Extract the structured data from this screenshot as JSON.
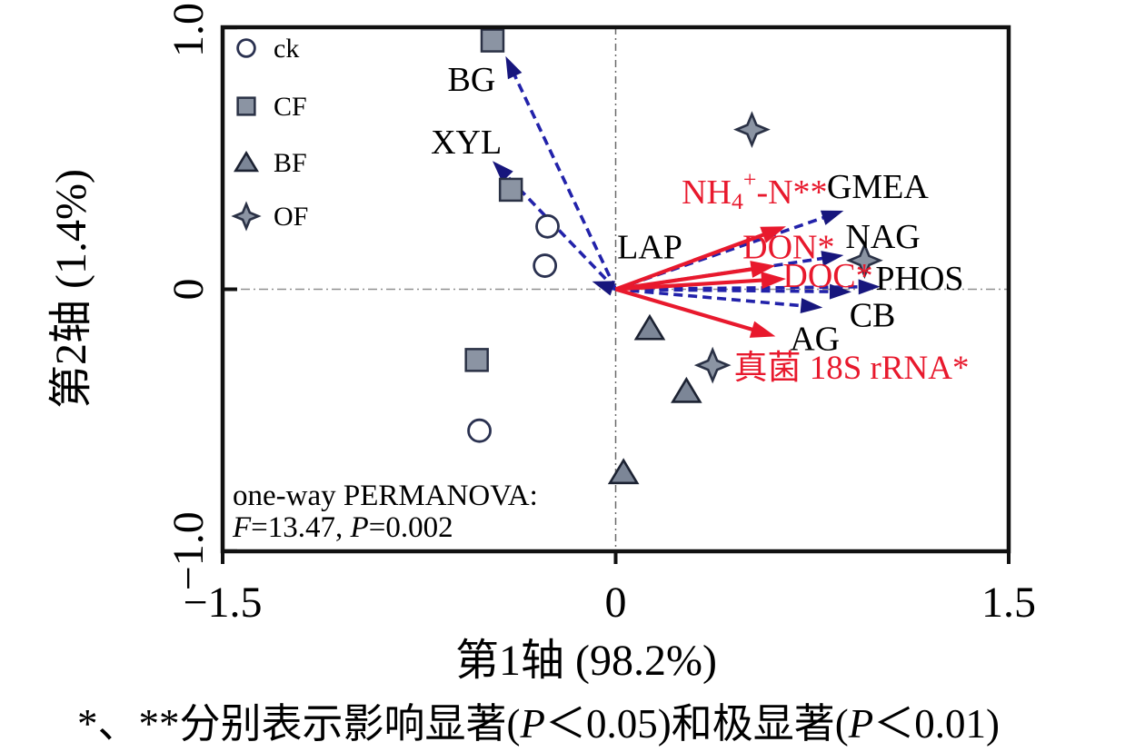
{
  "colors": {
    "blue_line": "#2222aa",
    "blue_head": "#17167d",
    "red": "#e8192d",
    "marker_fill": "#8b94a3",
    "marker_stroke": "#2a3145",
    "triangle_fill": "#7c8697",
    "triangle_stroke": "#1c2232",
    "circle_stroke": "#2a3150",
    "axis_black": "#111111",
    "ref_gray": "#909090",
    "text_black": "#000000"
  },
  "chart_data": {
    "type": "scatter",
    "subtype": "RDA ordination biplot",
    "xlabel": "第1轴 (98.2%)",
    "ylabel": "第2轴 (1.4%)",
    "xlim": [
      -1.5,
      1.5
    ],
    "ylim": [
      -1.0,
      1.0
    ],
    "grid": "dash-dot reference lines at x=0 and y=0",
    "legend_position": "inside top-left",
    "xticks": [
      {
        "v": -1.5,
        "label": "−1.5"
      },
      {
        "v": 0,
        "label": "0"
      },
      {
        "v": 1.5,
        "label": "1.5"
      }
    ],
    "yticks": [
      {
        "v": 1.0,
        "label": "1.0"
      },
      {
        "v": 0,
        "label": "0"
      },
      {
        "v": -1.0,
        "label": "−1.0"
      }
    ],
    "series": [
      {
        "name": "ck",
        "marker": "circle-open",
        "points": [
          {
            "x": -0.26,
            "y": 0.24
          },
          {
            "x": -0.27,
            "y": 0.09
          },
          {
            "x": -0.52,
            "y": -0.54
          }
        ]
      },
      {
        "name": "CF",
        "marker": "square",
        "points": [
          {
            "x": -0.47,
            "y": 0.95
          },
          {
            "x": -0.4,
            "y": 0.38
          },
          {
            "x": -0.53,
            "y": -0.27
          }
        ]
      },
      {
        "name": "BF",
        "marker": "triangle",
        "points": [
          {
            "x": 0.13,
            "y": -0.15
          },
          {
            "x": 0.27,
            "y": -0.39
          },
          {
            "x": 0.03,
            "y": -0.7
          }
        ]
      },
      {
        "name": "OF",
        "marker": "star4",
        "points": [
          {
            "x": 0.52,
            "y": 0.61
          },
          {
            "x": 0.95,
            "y": 0.11
          },
          {
            "x": 0.37,
            "y": -0.29
          }
        ]
      }
    ],
    "enzyme_vectors": [
      {
        "name": "BG",
        "x": -0.42,
        "y": 0.89,
        "label_at": {
          "x": -0.55,
          "y": 0.8
        },
        "parts": [
          {
            "t": "BG"
          }
        ]
      },
      {
        "name": "XYL",
        "x": -0.47,
        "y": 0.49,
        "label_at": {
          "x": -0.57,
          "y": 0.56
        },
        "parts": [
          {
            "t": "XYL"
          }
        ]
      },
      {
        "name": "LAP",
        "x": -0.09,
        "y": 0.03,
        "label_at": {
          "x": 0.13,
          "y": 0.16
        },
        "parts": [
          {
            "t": "LAP"
          }
        ]
      },
      {
        "name": "GMEA",
        "x": 0.87,
        "y": 0.3,
        "label_at": {
          "x": 1.0,
          "y": 0.39
        },
        "parts": [
          {
            "t": "GMEA"
          }
        ]
      },
      {
        "name": "NAG",
        "x": 0.87,
        "y": 0.13,
        "label_at": {
          "x": 1.02,
          "y": 0.2
        },
        "parts": [
          {
            "t": "NAG"
          }
        ]
      },
      {
        "name": "PHOS",
        "x": 1.01,
        "y": 0.01,
        "label_at": {
          "x": 1.16,
          "y": 0.04
        },
        "parts": [
          {
            "t": "PHOS"
          }
        ]
      },
      {
        "name": "CB",
        "x": 0.9,
        "y": -0.01,
        "label_at": {
          "x": 0.98,
          "y": -0.1
        },
        "parts": [
          {
            "t": "CB"
          }
        ]
      },
      {
        "name": "AG",
        "x": 0.79,
        "y": -0.07,
        "label_at": {
          "x": 0.76,
          "y": -0.19
        },
        "parts": [
          {
            "t": "AG"
          }
        ]
      }
    ],
    "env_vectors": [
      {
        "name": "NH4-N",
        "x": 0.65,
        "y": 0.24,
        "label_at": {
          "x": 0.53,
          "y": 0.37
        },
        "parts": [
          {
            "t": "NH"
          },
          {
            "t": "4",
            "dy": 9,
            "f": 0.68
          },
          {
            "t": "+",
            "dy": -24,
            "f": 0.68
          },
          {
            "t": "-N**",
            "dy": 15
          }
        ]
      },
      {
        "name": "DON",
        "x": 0.61,
        "y": 0.09,
        "label_at": {
          "x": 0.66,
          "y": 0.16
        },
        "parts": [
          {
            "t": "DON*"
          }
        ]
      },
      {
        "name": "DOC",
        "x": 0.65,
        "y": 0.04,
        "label_at": {
          "x": 0.81,
          "y": 0.05
        },
        "parts": [
          {
            "t": "DOC*"
          }
        ]
      },
      {
        "name": "fungal-18S-rRNA",
        "x": 0.61,
        "y": -0.18,
        "label_at": {
          "x": 0.9,
          "y": -0.3
        },
        "fs": 37,
        "parts": [
          {
            "t": "真菌 18S rRNA*"
          }
        ]
      }
    ],
    "annotation": {
      "line1": [
        {
          "t": "one-way PERMANOVA:"
        }
      ],
      "line2": [
        {
          "t": "F",
          "i": true
        },
        {
          "t": "=13.47, "
        },
        {
          "t": "P",
          "i": true
        },
        {
          "t": "=0.002"
        }
      ]
    }
  },
  "legend": {
    "items": [
      {
        "label": "ck",
        "marker": "circle-open"
      },
      {
        "label": "CF",
        "marker": "square"
      },
      {
        "label": "BF",
        "marker": "triangle"
      },
      {
        "label": "OF",
        "marker": "star4"
      }
    ]
  },
  "footnote_parts": [
    {
      "t": "*、**分别表示影响显著("
    },
    {
      "t": "P",
      "i": true
    },
    {
      "t": "＜0.05)和极显著("
    },
    {
      "t": "P",
      "i": true
    },
    {
      "t": "＜0.01)"
    }
  ]
}
